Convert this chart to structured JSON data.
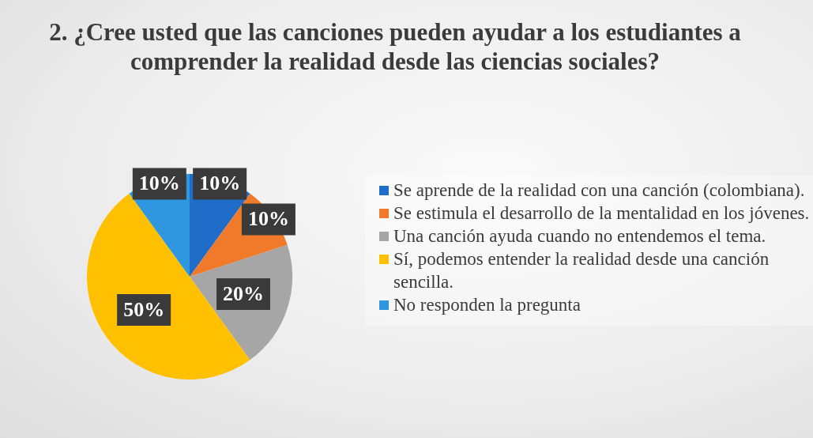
{
  "chart_data": {
    "type": "pie",
    "title": "2. ¿Cree usted que las canciones pueden ayudar a los estudiantes a comprender la realidad desde las ciencias sociales?",
    "categories": [
      "Se aprende de la realidad con una canción (colombiana).",
      "Se estimula el desarrollo de la mentalidad en los jóvenes.",
      "Una canción ayuda cuando no entendemos el tema.",
      "Sí, podemos entender la realidad desde una canción sencilla.",
      "No responden la pregunta"
    ],
    "values": [
      10,
      10,
      20,
      50,
      10
    ],
    "colors": [
      "#1f6cc9",
      "#f07a2a",
      "#a6a6a6",
      "#ffc000",
      "#2f96e0"
    ],
    "value_labels": [
      "10%",
      "10%",
      "20%",
      "50%",
      "10%"
    ],
    "legend": "right"
  }
}
